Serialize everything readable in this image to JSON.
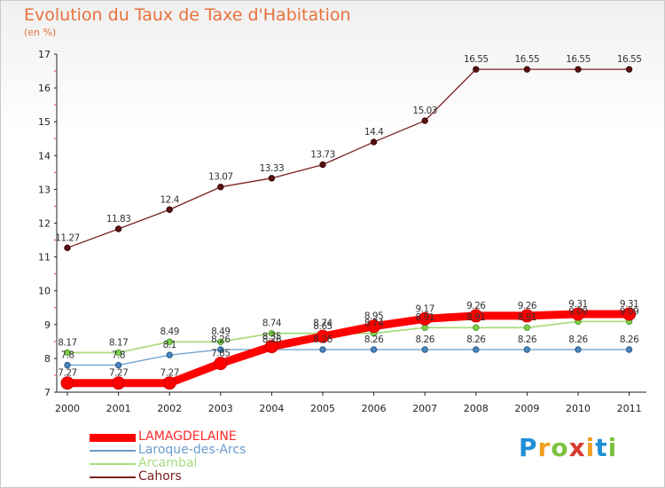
{
  "title": "Evolution du Taux de Taxe d'Habitation",
  "subtitle": "(en %)",
  "logo": {
    "letters": [
      "P",
      "r",
      "o",
      "x",
      "i",
      "t",
      "i"
    ],
    "colors": [
      "#1f8fd6",
      "#f0a020",
      "#7dc23f",
      "#d63b2f",
      "#f0a020",
      "#1f8fd6",
      "#7dc23f"
    ]
  },
  "chart_data": {
    "type": "line",
    "title": "Evolution du Taux de Taxe d'Habitation",
    "ylabel": "(en %)",
    "xlabel": "",
    "x": [
      "2000",
      "2001",
      "2002",
      "2003",
      "2004",
      "2005",
      "2006",
      "2007",
      "2008",
      "2009",
      "2010",
      "2011"
    ],
    "ylim": [
      7,
      17
    ],
    "yticks": [
      "7",
      "8",
      "9",
      "10",
      "11",
      "12",
      "13",
      "14",
      "15",
      "16",
      "17"
    ],
    "grid": false,
    "legend_position": "bottom-left",
    "series": [
      {
        "name": "LAMAGDELAINE",
        "color": "#ff0000",
        "values": [
          7.27,
          7.27,
          7.27,
          7.85,
          8.35,
          8.65,
          8.95,
          9.17,
          9.26,
          9.26,
          9.31,
          9.31
        ],
        "labels": [
          "7.27",
          "7.27",
          "7.27",
          "7.85",
          "8.35",
          "8.65",
          "8.95",
          "9.17",
          "9.26",
          "9.26",
          "9.31",
          "9.31"
        ]
      },
      {
        "name": "Laroque-des-Arcs",
        "color": "#6a9ccc",
        "values": [
          7.8,
          7.8,
          8.1,
          8.26,
          8.26,
          8.26,
          8.26,
          8.26,
          8.26,
          8.26,
          8.26,
          8.26
        ],
        "labels": [
          "7.8",
          "7.8",
          "8.1",
          "8.26",
          "8.26",
          "8.26",
          "8.26",
          "8.26",
          "8.26",
          "8.26",
          "8.26",
          "8.26"
        ]
      },
      {
        "name": "Arcambal",
        "color": "#a8dc80",
        "values": [
          8.17,
          8.17,
          8.49,
          8.49,
          8.74,
          8.74,
          8.74,
          8.91,
          8.91,
          8.91,
          9.09,
          9.09
        ],
        "labels": [
          "8.17",
          "8.17",
          "8.49",
          "8.49",
          "8.74",
          "8.74",
          "8.74",
          "8.91",
          "8.91",
          "8.91",
          "9.09",
          "9.09"
        ]
      },
      {
        "name": "Cahors",
        "color": "#7a1f1f",
        "values": [
          11.27,
          11.83,
          12.4,
          13.07,
          13.33,
          13.73,
          14.4,
          15.03,
          16.55,
          16.55,
          16.55,
          16.55
        ],
        "labels": [
          "11.27",
          "11.83",
          "12.4",
          "13.07",
          "13.33",
          "13.73",
          "14.4",
          "15.03",
          "16.55",
          "16.55",
          "16.55",
          "16.55"
        ]
      }
    ]
  }
}
